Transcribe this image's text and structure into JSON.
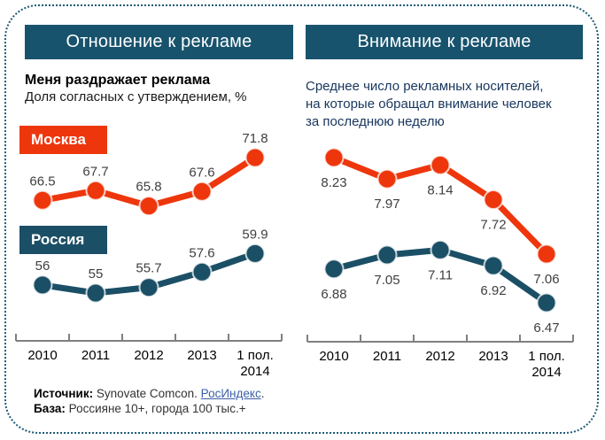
{
  "frame": {
    "border_color": "#1C5A74",
    "background": "#FFFFFF"
  },
  "panels": [
    {
      "header": "Отношение к рекламе"
    },
    {
      "header": "Внимание к рекламе"
    }
  ],
  "chart_data": [
    {
      "type": "line",
      "title": "Меня раздражает реклама",
      "subtitle": "Доля согласных с утверждением, %",
      "categories": [
        "2010",
        "2011",
        "2012",
        "2013",
        "1 пол.\n2014"
      ],
      "series": [
        {
          "name": "Москва",
          "color": "#EE360C",
          "values": [
            66.5,
            67.7,
            65.8,
            67.6,
            71.8
          ]
        },
        {
          "name": "Россия",
          "color": "#1B4F66",
          "values": [
            56,
            55,
            55.7,
            57.6,
            59.9
          ]
        }
      ],
      "value_labels": true,
      "label_position": "above",
      "legend_position": "inline-left",
      "ylim": [
        55,
        71.8
      ],
      "grid": false,
      "xlabel": "",
      "ylabel": ""
    },
    {
      "type": "line",
      "title": "Среднее число рекламных носителей,\nна которые обращал внимание человек\nза последнюю неделю",
      "subtitle": "",
      "categories": [
        "2010",
        "2011",
        "2012",
        "2013",
        "1 пол.\n2014"
      ],
      "series": [
        {
          "name": "Москва",
          "color": "#EE360C",
          "values": [
            8.23,
            7.97,
            8.14,
            7.72,
            7.06
          ]
        },
        {
          "name": "Россия",
          "color": "#1B4F66",
          "values": [
            6.88,
            7.05,
            7.11,
            6.92,
            6.47
          ]
        }
      ],
      "value_labels": true,
      "label_position": "below",
      "legend_position": "none",
      "ylim": [
        6.47,
        8.23
      ],
      "grid": false,
      "xlabel": "",
      "ylabel": ""
    }
  ],
  "footer": {
    "source_label": "Источник:",
    "source_text": " Synovate Comcon. ",
    "source_link": "РосИндекс",
    "source_suffix": ".",
    "base_label": "База:",
    "base_text": " Россияне 10+, города 100 тыс.+",
    "link_color": "#3A5FA8"
  },
  "colors": {
    "header_bg": "#18536D",
    "moscow_red": "#EE360C",
    "russia_teal": "#1B4F66",
    "axis_gray": "#808080",
    "data_label": "#3F3F3F",
    "right_subtitle": "#17365D"
  }
}
